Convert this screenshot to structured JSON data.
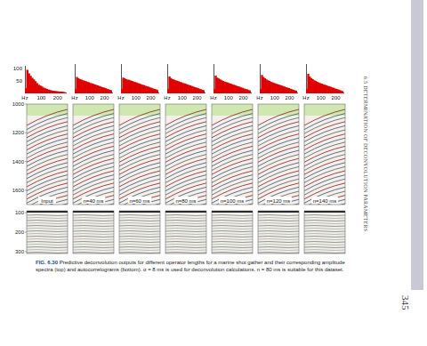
{
  "header": {
    "section": "6.5 DETERMINATION OF DECONVOLUTION PARAMETERS",
    "page_number": "345"
  },
  "figure": {
    "panel_labels": [
      "Input",
      "n=40 ms",
      "n=60 ms",
      "n=80 ms",
      "n=100 ms",
      "n=120 ms",
      "n=140 ms"
    ],
    "gather_axis": {
      "ylim": [
        1000,
        1700
      ],
      "yticks": [
        1000,
        1200,
        1400,
        1600
      ]
    },
    "autocorrelogram_axis": {
      "ylim": [
        90,
        310
      ],
      "yticks": [
        100,
        200,
        300
      ]
    },
    "figure_label": "FIG. 6.30",
    "caption": "Predictive deconvolution outputs for different operator lengths for a marine shot gather and their corresponding amplitude spectra (top) and autocorrelograms (bottom). α = 8 ms is used for deconvolution calculations. n = 80 ms is suitable for this dataset."
  },
  "chart_data": [
    {
      "type": "histogram",
      "bins": [
        0,
        10,
        20,
        30,
        40,
        50,
        60,
        70,
        80,
        90,
        100,
        110,
        120,
        130,
        140,
        150,
        160,
        170,
        180,
        190,
        200,
        210,
        220,
        230,
        240,
        250
      ],
      "counts": [
        20,
        95,
        80,
        70,
        62,
        55,
        48,
        40,
        34,
        30,
        26,
        22,
        19,
        16,
        14,
        12,
        10,
        9,
        8,
        7,
        6,
        5,
        5,
        4,
        3
      ],
      "color": "#e00000",
      "xlim": [
        0,
        250
      ],
      "xticks": [
        {
          "value": 0,
          "label": "Hz"
        },
        100,
        200
      ],
      "ylim": [
        0,
        110
      ],
      "yticks": [
        50,
        100
      ],
      "grid": false,
      "tick_labels": true
    },
    {
      "type": "histogram",
      "bins": [
        0,
        10,
        20,
        30,
        40,
        50,
        60,
        70,
        80,
        90,
        100,
        110,
        120,
        130,
        140,
        150,
        160,
        170,
        180,
        190,
        200,
        210,
        220,
        230,
        240,
        250
      ],
      "counts": [
        15,
        60,
        55,
        52,
        50,
        48,
        46,
        44,
        42,
        40,
        38,
        36,
        34,
        32,
        30,
        28,
        26,
        24,
        22,
        20,
        18,
        16,
        14,
        12,
        10
      ],
      "color": "#e00000",
      "xlim": [
        0,
        250
      ],
      "xticks": [
        {
          "value": 0,
          "label": "Hz"
        },
        100,
        200
      ],
      "ylim": [
        0,
        110
      ],
      "grid": false,
      "tick_labels": "x"
    },
    {
      "type": "histogram",
      "bins": [
        0,
        10,
        20,
        30,
        40,
        50,
        60,
        70,
        80,
        90,
        100,
        110,
        120,
        130,
        140,
        150,
        160,
        170,
        180,
        190,
        200,
        210,
        220,
        230,
        240,
        250
      ],
      "counts": [
        15,
        58,
        55,
        52,
        50,
        49,
        47,
        45,
        43,
        41,
        39,
        37,
        35,
        33,
        31,
        29,
        27,
        25,
        23,
        21,
        19,
        17,
        15,
        13,
        11
      ],
      "color": "#e00000",
      "xlim": [
        0,
        250
      ],
      "xticks": [
        {
          "value": 0,
          "label": "Hz"
        },
        100,
        200
      ],
      "ylim": [
        0,
        110
      ],
      "grid": false,
      "tick_labels": "x"
    },
    {
      "type": "histogram",
      "bins": [
        0,
        10,
        20,
        30,
        40,
        50,
        60,
        70,
        80,
        90,
        100,
        110,
        120,
        130,
        140,
        150,
        160,
        170,
        180,
        190,
        200,
        210,
        220,
        230,
        240,
        250
      ],
      "counts": [
        14,
        62,
        56,
        52,
        50,
        48,
        46,
        44,
        42,
        40,
        38,
        36,
        34,
        32,
        30,
        28,
        26,
        24,
        22,
        20,
        18,
        16,
        14,
        12,
        10
      ],
      "color": "#e00000",
      "xlim": [
        0,
        250
      ],
      "xticks": [
        {
          "value": 0,
          "label": "Hz"
        },
        100,
        200
      ],
      "ylim": [
        0,
        110
      ],
      "grid": false,
      "tick_labels": "x"
    },
    {
      "type": "histogram",
      "bins": [
        0,
        10,
        20,
        30,
        40,
        50,
        60,
        70,
        80,
        90,
        100,
        110,
        120,
        130,
        140,
        150,
        160,
        170,
        180,
        190,
        200,
        210,
        220,
        230,
        240,
        250
      ],
      "counts": [
        14,
        65,
        58,
        54,
        51,
        48,
        45,
        43,
        41,
        39,
        37,
        35,
        33,
        31,
        29,
        27,
        25,
        23,
        21,
        19,
        17,
        15,
        13,
        11,
        9
      ],
      "color": "#e00000",
      "xlim": [
        0,
        250
      ],
      "xticks": [
        {
          "value": 0,
          "label": "Hz"
        },
        100,
        200
      ],
      "ylim": [
        0,
        110
      ],
      "grid": false,
      "tick_labels": "x"
    },
    {
      "type": "histogram",
      "bins": [
        0,
        10,
        20,
        30,
        40,
        50,
        60,
        70,
        80,
        90,
        100,
        110,
        120,
        130,
        140,
        150,
        160,
        170,
        180,
        190,
        200,
        210,
        220,
        230,
        240,
        250
      ],
      "counts": [
        14,
        68,
        60,
        55,
        51,
        48,
        45,
        42,
        40,
        38,
        36,
        34,
        32,
        30,
        28,
        26,
        24,
        22,
        20,
        18,
        16,
        14,
        12,
        10,
        8
      ],
      "color": "#e00000",
      "xlim": [
        0,
        250
      ],
      "xticks": [
        {
          "value": 0,
          "label": "Hz"
        },
        100,
        200
      ],
      "ylim": [
        0,
        110
      ],
      "grid": false,
      "tick_labels": "x"
    },
    {
      "type": "histogram",
      "bins": [
        0,
        10,
        20,
        30,
        40,
        50,
        60,
        70,
        80,
        90,
        100,
        110,
        120,
        130,
        140,
        150,
        160,
        170,
        180,
        190,
        200,
        210,
        220,
        230,
        240,
        250
      ],
      "counts": [
        15,
        72,
        62,
        56,
        52,
        48,
        45,
        42,
        39,
        37,
        35,
        33,
        31,
        29,
        27,
        25,
        23,
        21,
        19,
        17,
        15,
        13,
        11,
        9,
        7
      ],
      "color": "#e00000",
      "xlim": [
        0,
        250
      ],
      "xticks": [
        {
          "value": 0,
          "label": "Hz"
        },
        100,
        200
      ],
      "ylim": [
        0,
        110
      ],
      "grid": false,
      "tick_labels": "x"
    }
  ]
}
